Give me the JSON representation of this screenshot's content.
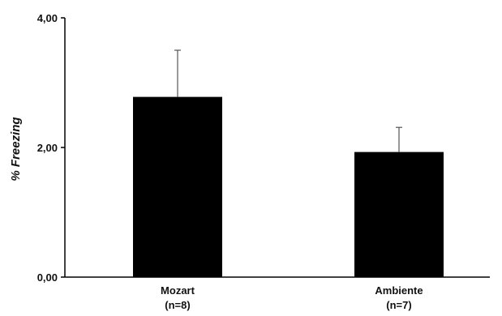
{
  "chart_data": {
    "type": "bar",
    "title": "",
    "xlabel": "",
    "ylabel": "% Freezing",
    "ylim": [
      0,
      4
    ],
    "yticks": [
      "0,00",
      "2,00",
      "4,00"
    ],
    "ytick_values": [
      0,
      2,
      4
    ],
    "categories": [
      {
        "name": "Mozart",
        "n": "(n=8)"
      },
      {
        "name": "Ambiente",
        "n": "(n=7)"
      }
    ],
    "values": [
      2.78,
      1.93
    ],
    "errors": [
      0.72,
      0.38
    ],
    "bar_color": "#000000",
    "grid": false,
    "legend": "none"
  }
}
